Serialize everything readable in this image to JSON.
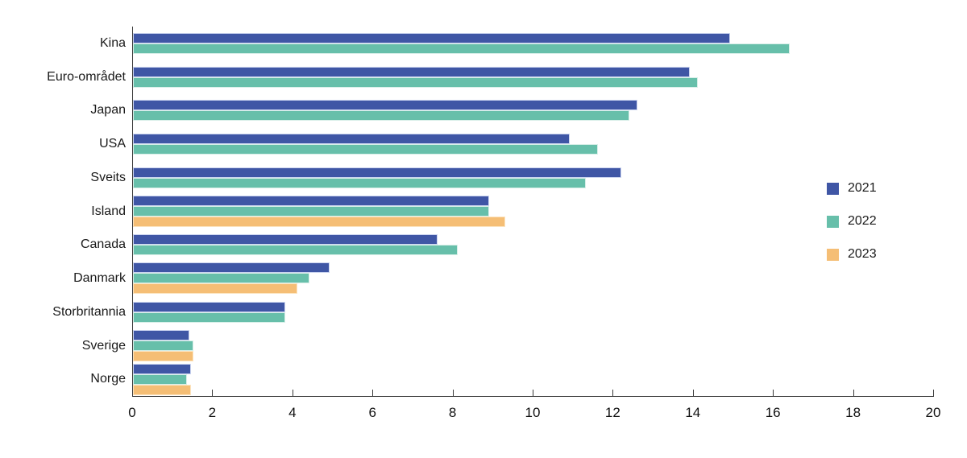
{
  "chart_data": {
    "type": "bar",
    "orientation": "horizontal",
    "title": "",
    "xlabel": "",
    "ylabel": "",
    "xlim": [
      0,
      20
    ],
    "x_ticks": [
      0,
      2,
      4,
      6,
      8,
      10,
      12,
      14,
      16,
      18,
      20
    ],
    "grid": false,
    "legend_position": "right",
    "categories": [
      "Kina",
      "Euro-området",
      "Japan",
      "USA",
      "Sveits",
      "Island",
      "Canada",
      "Danmark",
      "Storbritannia",
      "Sverige",
      "Norge"
    ],
    "series": [
      {
        "name": "2021",
        "color": "#3F56A5",
        "edge_color": "#CBD4EF",
        "values": [
          14.9,
          13.9,
          12.6,
          10.9,
          12.2,
          8.9,
          7.6,
          4.9,
          3.8,
          1.4,
          1.45
        ]
      },
      {
        "name": "2022",
        "color": "#67BFAA",
        "edge_color": "#D8EFE8",
        "values": [
          16.4,
          14.1,
          12.4,
          11.6,
          11.3,
          8.9,
          8.1,
          4.4,
          3.8,
          1.5,
          1.35
        ]
      },
      {
        "name": "2023",
        "color": "#F5BE75",
        "edge_color": "#FCE4C0",
        "values": [
          null,
          null,
          null,
          null,
          null,
          9.3,
          null,
          4.1,
          null,
          1.5,
          1.45
        ]
      }
    ]
  },
  "legend": {
    "items": [
      {
        "label": "2021",
        "color": "#3F56A5"
      },
      {
        "label": "2022",
        "color": "#67BFAA"
      },
      {
        "label": "2023",
        "color": "#F5BE75"
      }
    ]
  },
  "axis": {
    "line_color": "#3a3a3a",
    "text_color": "#111111"
  }
}
